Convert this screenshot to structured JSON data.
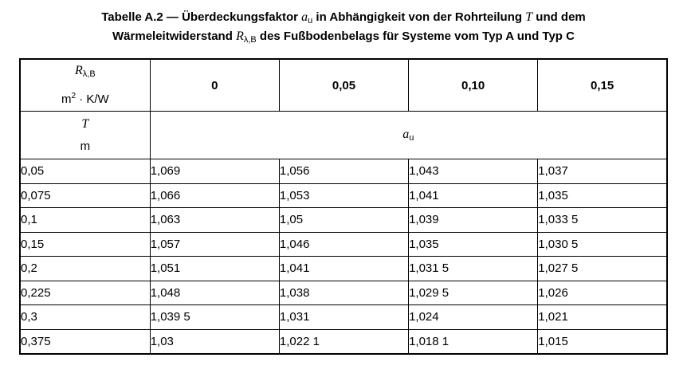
{
  "caption": {
    "part1": "Tabelle A.2 — Überdeckungsfaktor ",
    "au_symbol": "a",
    "au_sub": "u",
    "part2": " in Abhängigkeit von der Rohrteilung ",
    "T_symbol": "T",
    "part3": " und dem",
    "line2_part1": "Wärmeleitwiderstand ",
    "R_symbol": "R",
    "R_sub": "λ,B",
    "line2_part2": " des Fußbodenbelags für Systeme vom Typ A und Typ C"
  },
  "header": {
    "r_symbol": "R",
    "r_sub": "λ,B",
    "r_unit_base": "m",
    "r_unit_sup": "2",
    "r_unit_rest": " · K/W",
    "columns": [
      "0",
      "0,05",
      "0,10",
      "0,15"
    ],
    "t_symbol": "T",
    "t_unit": "m",
    "au_symbol": "a",
    "au_sub": "u"
  },
  "rows": [
    [
      "0,05",
      "1,069",
      "1,056",
      "1,043",
      "1,037"
    ],
    [
      "0,075",
      "1,066",
      "1,053",
      "1,041",
      "1,035"
    ],
    [
      "0,1",
      "1,063",
      "1,05",
      "1,039",
      "1,033 5"
    ],
    [
      "0,15",
      "1,057",
      "1,046",
      "1,035",
      "1,030 5"
    ],
    [
      "0,2",
      "1,051",
      "1,041",
      "1,031 5",
      "1,027 5"
    ],
    [
      "0,225",
      "1,048",
      "1,038",
      "1,029 5",
      "1,026"
    ],
    [
      "0,3",
      "1,039 5",
      "1,031",
      "1,024",
      "1,021"
    ],
    [
      "0,375",
      "1,03",
      "1,022 1",
      "1,018 1",
      "1,015"
    ]
  ]
}
